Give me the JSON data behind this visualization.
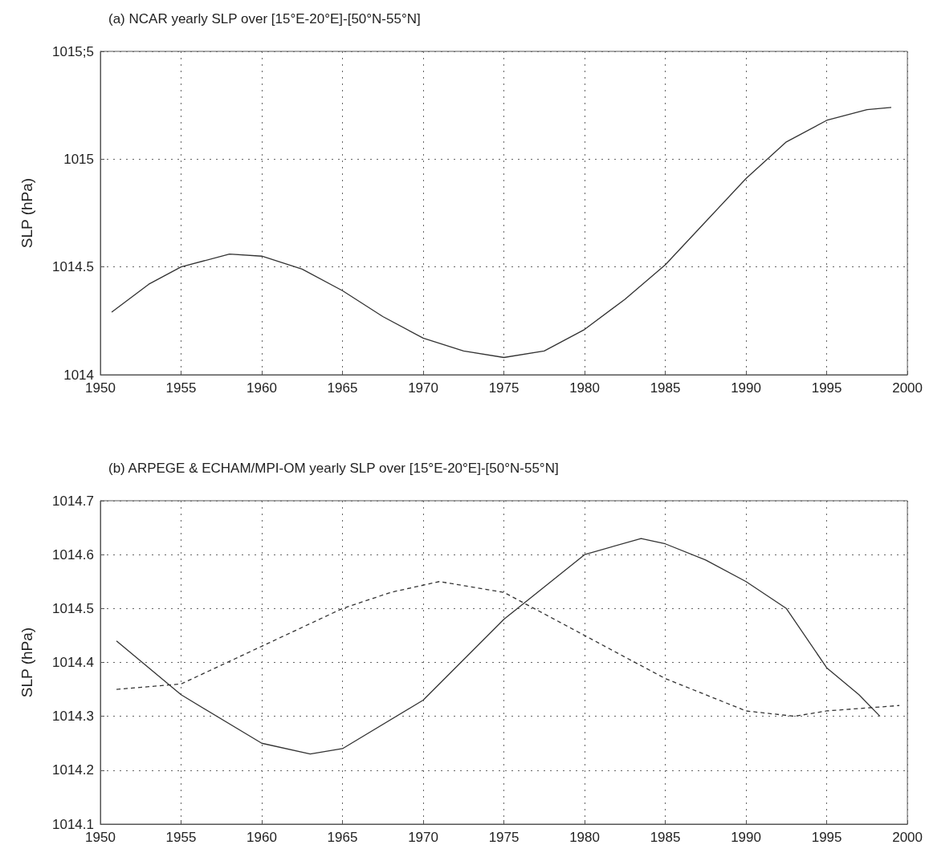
{
  "chart_data": [
    {
      "type": "line",
      "title": "(a) NCAR yearly SLP over [15°E-20°E]-[50°N-55°N]",
      "ylabel": "SLP (hPa)",
      "xlim": [
        1950,
        2000
      ],
      "xticks": [
        1950,
        1955,
        1960,
        1965,
        1970,
        1975,
        1980,
        1985,
        1990,
        1995,
        2000
      ],
      "ylim": [
        1014,
        1015.5
      ],
      "yticks": [
        1014,
        1014.5,
        1015,
        {
          "value": 1015.5,
          "label": "1015;5"
        }
      ],
      "grid": true,
      "series": [
        {
          "color": "#333333",
          "line_style": "solid",
          "x": [
            1950.7,
            1953,
            1955,
            1958,
            1960,
            1962.5,
            1965,
            1967.5,
            1970,
            1972.5,
            1975,
            1977.5,
            1980,
            1982.5,
            1985,
            1987.5,
            1990,
            1992.5,
            1995,
            1997.5,
            1999
          ],
          "values": [
            1014.29,
            1014.42,
            1014.5,
            1014.56,
            1014.55,
            1014.49,
            1014.39,
            1014.27,
            1014.17,
            1014.11,
            1014.08,
            1014.11,
            1014.21,
            1014.35,
            1014.51,
            1014.71,
            1014.91,
            1015.08,
            1015.18,
            1015.23,
            1015.24
          ]
        }
      ]
    },
    {
      "type": "line",
      "title": "(b) ARPEGE & ECHAM/MPI-OM yearly SLP over [15°E-20°E]-[50°N-55°N]",
      "ylabel": "SLP (hPa)",
      "xlim": [
        1950,
        2000
      ],
      "xticks": [
        1950,
        1955,
        1960,
        1965,
        1970,
        1975,
        1980,
        1985,
        1990,
        1995,
        2000
      ],
      "ylim": [
        1014.1,
        1014.7
      ],
      "yticks": [
        1014.1,
        1014.2,
        1014.3,
        1014.4,
        1014.5,
        1014.6,
        1014.7
      ],
      "grid": true,
      "series": [
        {
          "color": "#333333",
          "line_style": "solid",
          "x": [
            1951,
            1955,
            1960,
            1963,
            1965,
            1970,
            1975,
            1980,
            1983.5,
            1985,
            1987.5,
            1990,
            1992.5,
            1995,
            1997,
            1998.3
          ],
          "values": [
            1014.44,
            1014.34,
            1014.25,
            1014.23,
            1014.24,
            1014.33,
            1014.48,
            1014.6,
            1014.63,
            1014.62,
            1014.59,
            1014.55,
            1014.5,
            1014.39,
            1014.34,
            1014.3
          ]
        },
        {
          "color": "#333333",
          "line_style": "dashed",
          "x": [
            1951,
            1955,
            1960,
            1965,
            1968,
            1971,
            1975,
            1980,
            1985,
            1990,
            1993,
            1995,
            1999.5
          ],
          "values": [
            1014.35,
            1014.36,
            1014.43,
            1014.5,
            1014.53,
            1014.55,
            1014.53,
            1014.45,
            1014.37,
            1014.31,
            1014.3,
            1014.31,
            1014.32
          ]
        }
      ]
    }
  ]
}
